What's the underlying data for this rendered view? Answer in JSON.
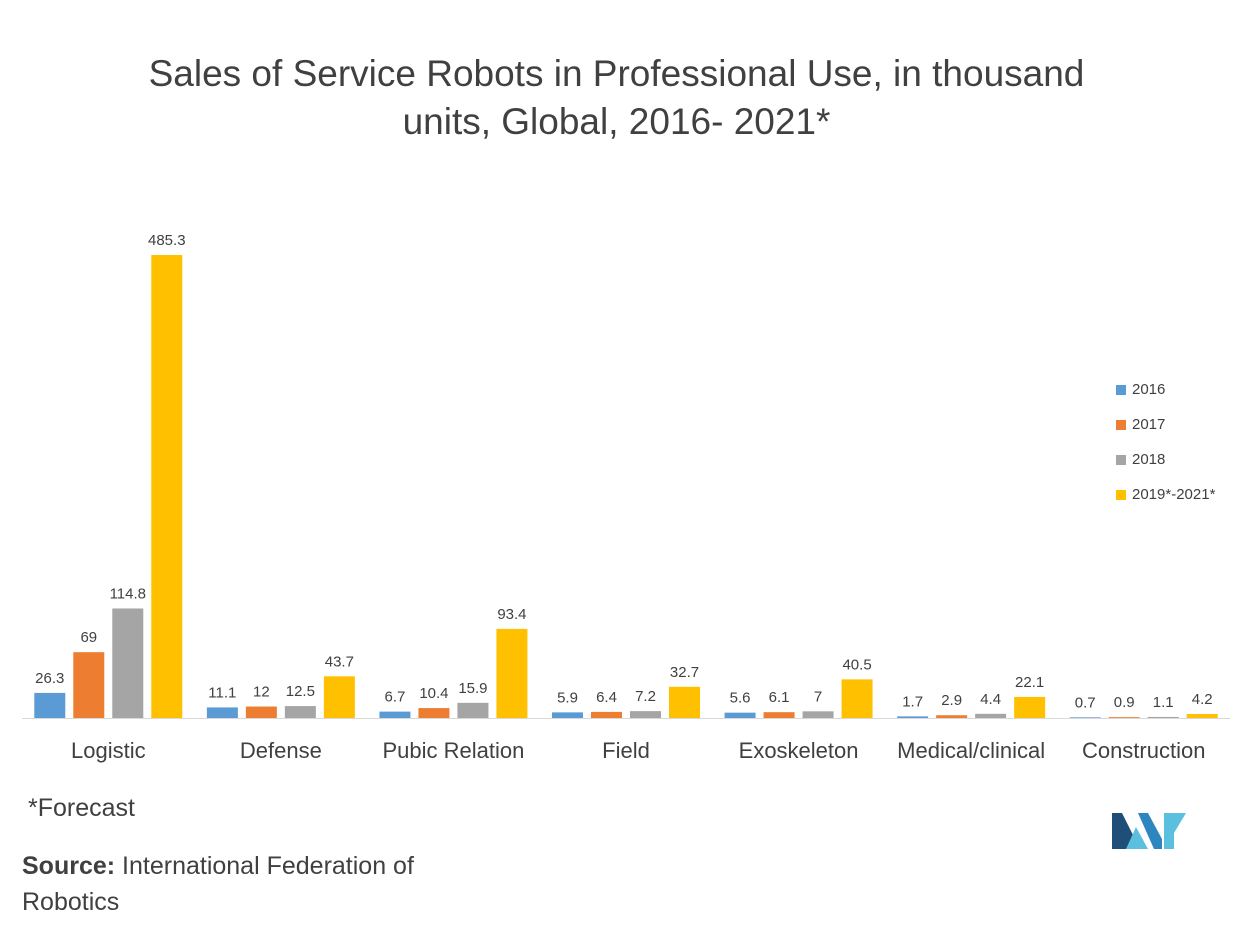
{
  "title_line1": "Sales of Service Robots in Professional  Use, in thousand",
  "title_line2": "units, Global, 2016- 2021*",
  "footnote": "*Forecast",
  "source_label": "Source:",
  "source_text": " International Federation of Robotics",
  "colors": {
    "2016": "#5b9bd5",
    "2017": "#ed7d31",
    "2018": "#a5a5a5",
    "2019*-2021*": "#ffc000",
    "axis": "#d9d9d9",
    "logo": "#5bc0de"
  },
  "chart_data": {
    "type": "bar",
    "title": "Sales of Service Robots in Professional  Use, in thousand units, Global, 2016- 2021*",
    "categories": [
      "Logistic",
      "Defense",
      "Pubic Relation",
      "Field",
      "Exoskeleton",
      "Medical/clinical",
      "Construction"
    ],
    "series": [
      {
        "name": "2016",
        "values": [
          26.3,
          11.1,
          6.7,
          5.9,
          5.6,
          1.7,
          0.7
        ]
      },
      {
        "name": "2017",
        "values": [
          69,
          12,
          10.4,
          6.4,
          6.1,
          2.9,
          0.9
        ]
      },
      {
        "name": "2018",
        "values": [
          114.8,
          12.5,
          15.9,
          7.2,
          7,
          4.4,
          1.1
        ]
      },
      {
        "name": "2019*-2021*",
        "values": [
          485.3,
          43.7,
          93.4,
          32.7,
          40.5,
          22.1,
          4.2
        ]
      }
    ],
    "ylim": [
      0,
      485.3
    ],
    "grid": false,
    "legend_position": "right",
    "data_labels": true
  }
}
